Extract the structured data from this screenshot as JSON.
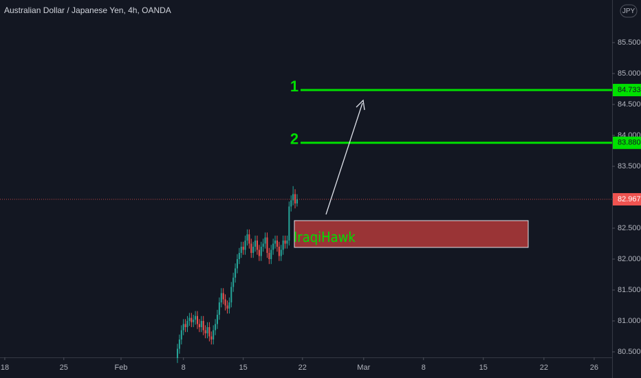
{
  "chart_data": {
    "type": "candlestick",
    "title": "Australian Dollar / Japanese Yen, 4h, OANDA",
    "currency": "JPY",
    "up_color": "#26a69a",
    "down_color": "#ef5350",
    "grid": false,
    "x": [
      89,
      90,
      91,
      92,
      93,
      94,
      95,
      96,
      97,
      98,
      99,
      100,
      101,
      102,
      103,
      104,
      105,
      106,
      107,
      108,
      109,
      110,
      111,
      112,
      113,
      114,
      115,
      116,
      117,
      118,
      119,
      120,
      121,
      122,
      123,
      124,
      125,
      126,
      127,
      128,
      129,
      130,
      131,
      132,
      133,
      134,
      135,
      136,
      137,
      138,
      139,
      140,
      141,
      142,
      143,
      144,
      145,
      146,
      147,
      148,
      149
    ],
    "candles": [
      [
        80.4,
        80.63,
        80.32,
        80.55
      ],
      [
        80.55,
        80.78,
        80.47,
        80.7
      ],
      [
        80.7,
        80.93,
        80.62,
        80.85
      ],
      [
        80.85,
        81.03,
        80.77,
        80.95
      ],
      [
        80.95,
        81.03,
        80.82,
        80.9
      ],
      [
        80.9,
        81.08,
        80.82,
        81.0
      ],
      [
        81.0,
        81.13,
        80.92,
        81.05
      ],
      [
        81.05,
        81.13,
        80.9,
        80.98
      ],
      [
        80.98,
        81.1,
        80.9,
        81.02
      ],
      [
        81.02,
        81.16,
        80.94,
        81.08
      ],
      [
        81.08,
        81.16,
        80.87,
        80.95
      ],
      [
        80.95,
        81.03,
        80.82,
        80.9
      ],
      [
        80.9,
        81.08,
        80.82,
        81.0
      ],
      [
        81.0,
        81.08,
        80.77,
        80.85
      ],
      [
        80.85,
        80.93,
        80.72,
        80.8
      ],
      [
        80.8,
        80.98,
        80.72,
        80.9
      ],
      [
        80.9,
        80.98,
        80.67,
        80.75
      ],
      [
        80.75,
        80.83,
        80.62,
        80.7
      ],
      [
        80.7,
        80.93,
        80.62,
        80.85
      ],
      [
        80.85,
        81.03,
        80.77,
        80.95
      ],
      [
        80.95,
        81.18,
        80.87,
        81.1
      ],
      [
        81.1,
        81.38,
        81.02,
        81.3
      ],
      [
        81.3,
        81.53,
        81.22,
        81.45
      ],
      [
        81.45,
        81.53,
        81.27,
        81.35
      ],
      [
        81.35,
        81.43,
        81.17,
        81.25
      ],
      [
        81.25,
        81.33,
        81.12,
        81.2
      ],
      [
        81.2,
        81.38,
        81.12,
        81.3
      ],
      [
        81.3,
        81.63,
        81.22,
        81.55
      ],
      [
        81.55,
        81.78,
        81.47,
        81.7
      ],
      [
        81.7,
        81.93,
        81.62,
        81.85
      ],
      [
        81.85,
        82.08,
        81.77,
        82.0
      ],
      [
        82.0,
        82.18,
        81.92,
        82.1
      ],
      [
        82.1,
        82.28,
        82.02,
        82.2
      ],
      [
        82.2,
        82.28,
        82.07,
        82.15
      ],
      [
        82.15,
        82.38,
        82.07,
        82.3
      ],
      [
        82.3,
        82.48,
        82.22,
        82.4
      ],
      [
        82.4,
        82.48,
        82.17,
        82.25
      ],
      [
        82.25,
        82.33,
        82.02,
        82.1
      ],
      [
        82.1,
        82.28,
        82.02,
        82.2
      ],
      [
        82.2,
        82.38,
        82.12,
        82.3
      ],
      [
        82.3,
        82.38,
        82.07,
        82.15
      ],
      [
        82.15,
        82.23,
        81.97,
        82.05
      ],
      [
        82.05,
        82.28,
        81.97,
        82.2
      ],
      [
        82.2,
        82.33,
        82.12,
        82.25
      ],
      [
        82.25,
        82.43,
        82.17,
        82.35
      ],
      [
        82.35,
        82.43,
        82.02,
        82.1
      ],
      [
        82.1,
        82.18,
        81.92,
        82.0
      ],
      [
        82.0,
        82.23,
        81.92,
        82.15
      ],
      [
        82.15,
        82.33,
        82.07,
        82.25
      ],
      [
        82.25,
        82.38,
        82.17,
        82.3
      ],
      [
        82.3,
        82.38,
        82.12,
        82.2
      ],
      [
        82.2,
        82.28,
        81.97,
        82.05
      ],
      [
        82.05,
        82.23,
        81.97,
        82.15
      ],
      [
        82.15,
        82.38,
        82.07,
        82.3
      ],
      [
        82.3,
        82.38,
        82.17,
        82.25
      ],
      [
        82.25,
        82.38,
        82.17,
        82.3
      ],
      [
        82.3,
        82.93,
        82.22,
        82.85
      ],
      [
        82.85,
        83.03,
        82.77,
        82.95
      ],
      [
        82.95,
        83.18,
        82.87,
        83.05
      ],
      [
        83.05,
        83.13,
        82.82,
        82.9
      ],
      [
        82.9,
        83.05,
        82.85,
        82.967
      ]
    ],
    "xlim": [
      0,
      307
    ],
    "xticks": [
      {
        "value": 2.4,
        "label": "18"
      },
      {
        "value": 32,
        "label": "25"
      },
      {
        "value": 60.7,
        "label": "Feb"
      },
      {
        "value": 92,
        "label": "8"
      },
      {
        "value": 122,
        "label": "15"
      },
      {
        "value": 151.7,
        "label": "22"
      },
      {
        "value": 182.4,
        "label": "Mar"
      },
      {
        "value": 212.4,
        "label": "8"
      },
      {
        "value": 242.4,
        "label": "15"
      },
      {
        "value": 272.8,
        "label": "22"
      },
      {
        "value": 298,
        "label": "26"
      }
    ],
    "ylim": [
      80.411,
      86.189
    ],
    "yticks": [
      {
        "value": 80.5,
        "label": "80.500"
      },
      {
        "value": 81,
        "label": "81.000"
      },
      {
        "value": 81.5,
        "label": "81.500"
      },
      {
        "value": 82,
        "label": "82.000"
      },
      {
        "value": 82.5,
        "label": "82.500"
      },
      {
        "value": 83,
        "label": "83.000"
      },
      {
        "value": 83.5,
        "label": "83.500"
      },
      {
        "value": 84,
        "label": "84.000"
      },
      {
        "value": 84.5,
        "label": "84.500"
      },
      {
        "value": 85,
        "label": "85.000"
      },
      {
        "value": 85.5,
        "label": "85.500"
      }
    ],
    "levels": [
      {
        "label": "1",
        "value": 84.733,
        "value_label": "84.733",
        "color": "#00e000"
      },
      {
        "label": "2",
        "value": 83.88,
        "value_label": "83.880",
        "color": "#00e000"
      }
    ],
    "last_price": {
      "value": 82.967,
      "label": "82.967",
      "color": "#ef5350"
    },
    "zone": {
      "label": "IraqiHawk",
      "low": 82.189,
      "high": 82.622,
      "color": "#b33a3a"
    }
  }
}
